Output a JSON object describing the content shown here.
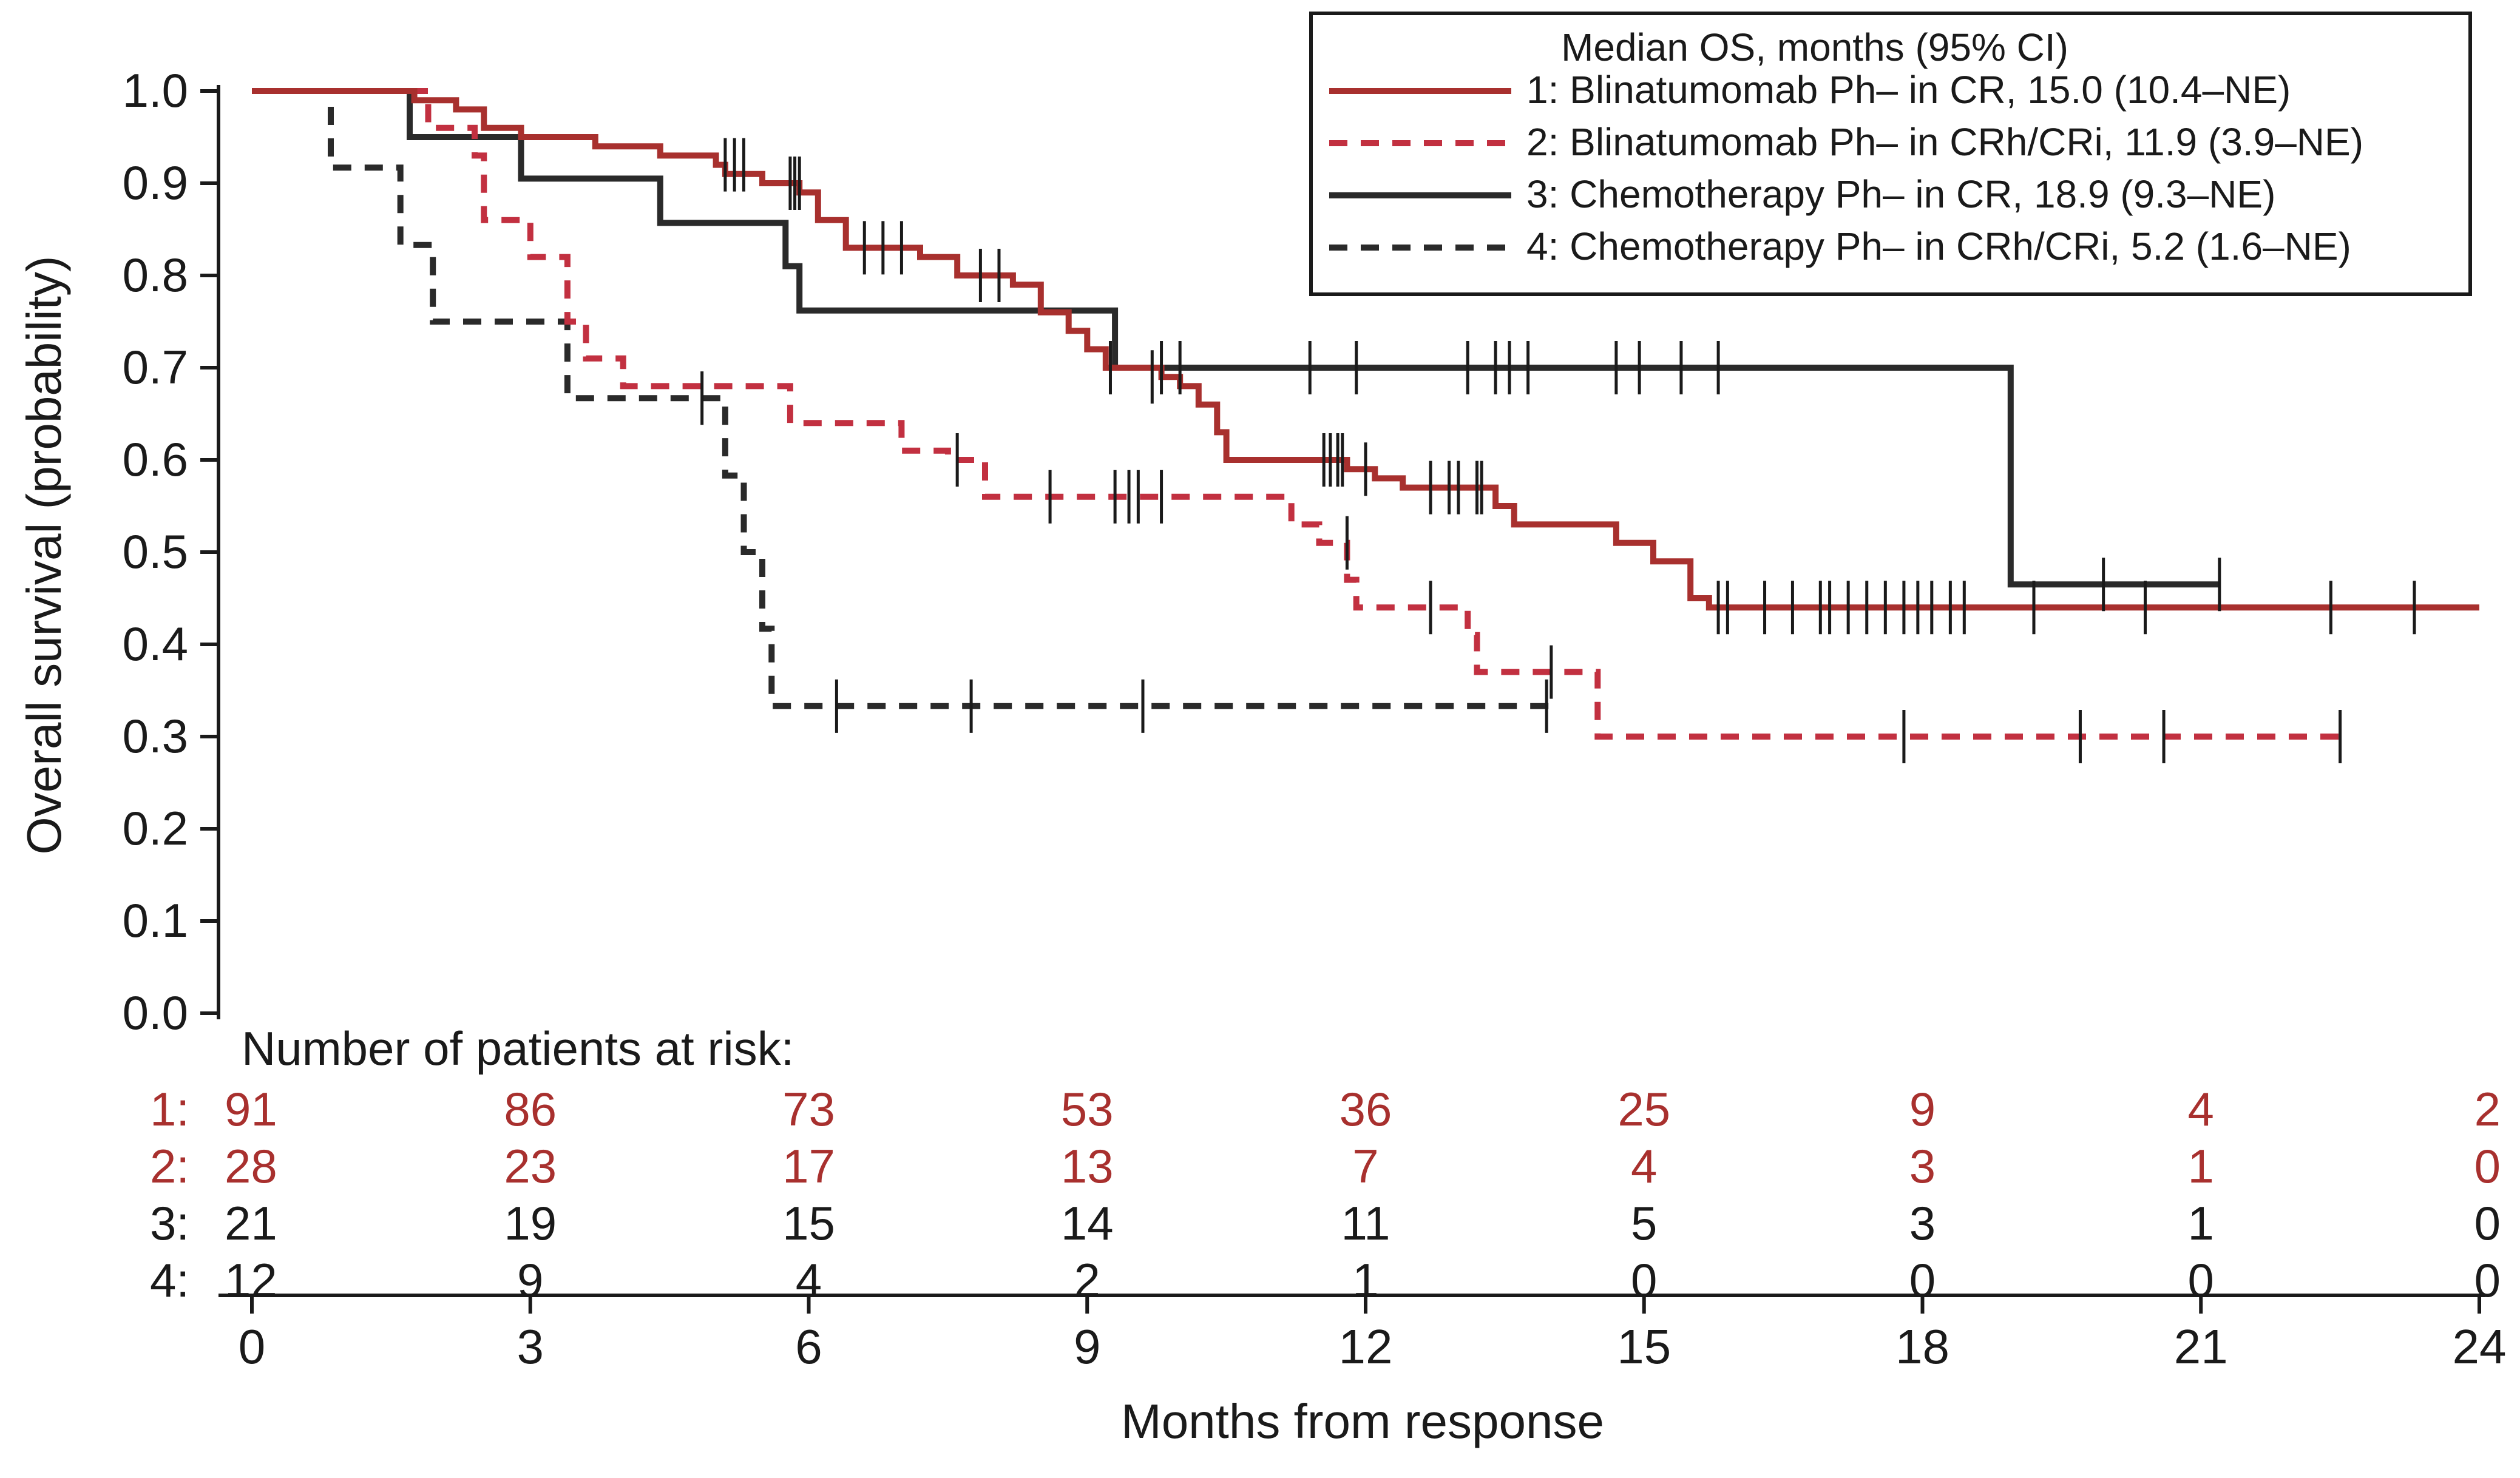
{
  "chart_data": {
    "type": "kaplan-meier",
    "title": "",
    "xlabel": "Months from response",
    "ylabel": "Overall survival (probability)",
    "xlim": [
      0,
      24
    ],
    "ylim": [
      0,
      1
    ],
    "x_ticks": [
      0,
      3,
      6,
      9,
      12,
      15,
      18,
      21,
      24
    ],
    "x_tick_labels": [
      "0",
      "3",
      "6",
      "9",
      "12",
      "15",
      "18",
      "21",
      "24"
    ],
    "y_ticks": [
      0,
      0.1,
      0.2,
      0.3,
      0.4,
      0.5,
      0.6,
      0.7,
      0.8,
      0.9,
      1.0
    ],
    "y_tick_labels": [
      "0.0",
      "0.1",
      "0.2",
      "0.3",
      "0.4",
      "0.5",
      "0.6",
      "0.7",
      "0.8",
      "0.9",
      "1.0"
    ],
    "legend": {
      "title": "Median OS, months (95% CI)",
      "position": "top-right",
      "entries": [
        "1: Blinatumomab Ph– in CR, 15.0 (10.4–NE)",
        "2: Blinatumomab Ph– in CRh/CRi, 11.9 (3.9–NE)",
        "3: Chemotherapy Ph– in CR, 18.9 (9.3–NE)",
        "4: Chemotherapy Ph– in CRh/CRi, 5.2 (1.6–NE)"
      ]
    },
    "risk_table": {
      "title": "Number of patients at risk:",
      "rows": [
        {
          "label": "1:",
          "values": [
            "91",
            "86",
            "73",
            "53",
            "36",
            "25",
            "9",
            "4",
            "2"
          ]
        },
        {
          "label": "2:",
          "values": [
            "28",
            "23",
            "17",
            "13",
            "7",
            "4",
            "3",
            "1",
            "0"
          ]
        },
        {
          "label": "3:",
          "values": [
            "21",
            "19",
            "15",
            "14",
            "11",
            "5",
            "3",
            "1",
            "0"
          ]
        },
        {
          "label": "4:",
          "values": [
            "12",
            "9",
            "4",
            "2",
            "1",
            "0",
            "0",
            "0",
            "0"
          ]
        }
      ]
    },
    "series": [
      {
        "name": "1: Blinatumomab Ph– in CR",
        "color": "#a8302e",
        "dash": "solid",
        "steps": [
          [
            0,
            1.0
          ],
          [
            1.75,
            0.99
          ],
          [
            2.2,
            0.98
          ],
          [
            2.5,
            0.96
          ],
          [
            2.9,
            0.95
          ],
          [
            3.7,
            0.94
          ],
          [
            4.4,
            0.93
          ],
          [
            5.0,
            0.92
          ],
          [
            5.1,
            0.91
          ],
          [
            5.5,
            0.9
          ],
          [
            5.9,
            0.89
          ],
          [
            6.1,
            0.86
          ],
          [
            6.4,
            0.83
          ],
          [
            7.2,
            0.82
          ],
          [
            7.6,
            0.8
          ],
          [
            8.2,
            0.79
          ],
          [
            8.5,
            0.76
          ],
          [
            8.8,
            0.74
          ],
          [
            9.0,
            0.72
          ],
          [
            9.2,
            0.7
          ],
          [
            9.8,
            0.69
          ],
          [
            10.0,
            0.68
          ],
          [
            10.2,
            0.66
          ],
          [
            10.4,
            0.63
          ],
          [
            10.5,
            0.6
          ],
          [
            11.8,
            0.59
          ],
          [
            12.1,
            0.58
          ],
          [
            12.4,
            0.57
          ],
          [
            13.4,
            0.55
          ],
          [
            13.6,
            0.53
          ],
          [
            14.7,
            0.51
          ],
          [
            15.1,
            0.49
          ],
          [
            15.5,
            0.45
          ],
          [
            15.7,
            0.44
          ],
          [
            24,
            0.44
          ]
        ],
        "end_x": 24,
        "censors": [
          [
            5.1,
            0.92
          ],
          [
            5.2,
            0.92
          ],
          [
            5.3,
            0.92
          ],
          [
            5.8,
            0.9
          ],
          [
            5.85,
            0.9
          ],
          [
            5.9,
            0.9
          ],
          [
            6.6,
            0.83
          ],
          [
            6.8,
            0.83
          ],
          [
            7.0,
            0.83
          ],
          [
            7.85,
            0.8
          ],
          [
            8.05,
            0.8
          ],
          [
            9.7,
            0.69
          ],
          [
            11.55,
            0.6
          ],
          [
            11.62,
            0.6
          ],
          [
            11.7,
            0.6
          ],
          [
            11.75,
            0.6
          ],
          [
            12.0,
            0.59
          ],
          [
            12.7,
            0.57
          ],
          [
            12.9,
            0.57
          ],
          [
            13.0,
            0.57
          ],
          [
            13.2,
            0.57
          ],
          [
            13.25,
            0.57
          ],
          [
            15.8,
            0.44
          ],
          [
            15.9,
            0.44
          ],
          [
            16.3,
            0.44
          ],
          [
            16.6,
            0.44
          ],
          [
            16.9,
            0.44
          ],
          [
            17.0,
            0.44
          ],
          [
            17.2,
            0.44
          ],
          [
            17.4,
            0.44
          ],
          [
            17.6,
            0.44
          ],
          [
            17.8,
            0.44
          ],
          [
            17.95,
            0.44
          ],
          [
            18.1,
            0.44
          ],
          [
            18.3,
            0.44
          ],
          [
            18.45,
            0.44
          ],
          [
            19.2,
            0.44
          ],
          [
            20.4,
            0.44
          ],
          [
            22.4,
            0.44
          ],
          [
            23.3,
            0.44
          ]
        ]
      },
      {
        "name": "2: Blinatumomab Ph– in CRh/CRi",
        "color": "#c23040",
        "dash": "dashed",
        "steps": [
          [
            0,
            1.0
          ],
          [
            1.9,
            0.96
          ],
          [
            2.4,
            0.93
          ],
          [
            2.5,
            0.86
          ],
          [
            3.0,
            0.82
          ],
          [
            3.4,
            0.75
          ],
          [
            3.6,
            0.71
          ],
          [
            4.0,
            0.68
          ],
          [
            5.3,
            0.68
          ],
          [
            5.8,
            0.64
          ],
          [
            7.0,
            0.61
          ],
          [
            7.5,
            0.6
          ],
          [
            7.9,
            0.56
          ],
          [
            11.2,
            0.53
          ],
          [
            11.5,
            0.51
          ],
          [
            11.8,
            0.47
          ],
          [
            11.9,
            0.44
          ],
          [
            13.1,
            0.41
          ],
          [
            13.2,
            0.37
          ],
          [
            14.5,
            0.3
          ],
          [
            22.5,
            0.3
          ]
        ],
        "end_x": 22.5,
        "censors": [
          [
            7.6,
            0.6
          ],
          [
            8.6,
            0.56
          ],
          [
            9.3,
            0.56
          ],
          [
            9.45,
            0.56
          ],
          [
            9.55,
            0.56
          ],
          [
            9.8,
            0.56
          ],
          [
            11.8,
            0.51
          ],
          [
            12.7,
            0.44
          ],
          [
            14.0,
            0.37
          ],
          [
            17.8,
            0.3
          ],
          [
            19.7,
            0.3
          ],
          [
            20.6,
            0.3
          ],
          [
            22.5,
            0.3
          ]
        ]
      },
      {
        "name": "3: Chemotherapy Ph– in CR",
        "color": "#2a2a2a",
        "dash": "solid",
        "steps": [
          [
            0,
            1.0
          ],
          [
            1.7,
            0.95
          ],
          [
            2.9,
            0.905
          ],
          [
            4.4,
            0.857
          ],
          [
            5.75,
            0.81
          ],
          [
            5.9,
            0.762
          ],
          [
            9.3,
            0.7
          ],
          [
            18.95,
            0.465
          ],
          [
            21.2,
            0.465
          ]
        ],
        "end_x": 21.2,
        "censors": [
          [
            9.25,
            0.7
          ],
          [
            9.8,
            0.7
          ],
          [
            10.0,
            0.7
          ],
          [
            11.4,
            0.7
          ],
          [
            11.9,
            0.7
          ],
          [
            13.1,
            0.7
          ],
          [
            13.4,
            0.7
          ],
          [
            13.55,
            0.7
          ],
          [
            13.75,
            0.7
          ],
          [
            14.7,
            0.7
          ],
          [
            14.95,
            0.7
          ],
          [
            15.4,
            0.7
          ],
          [
            15.8,
            0.7
          ],
          [
            19.95,
            0.465
          ],
          [
            21.2,
            0.465
          ]
        ]
      },
      {
        "name": "4: Chemotherapy Ph– in CRh/CRi",
        "color": "#2a2a2a",
        "dash": "dashed",
        "steps": [
          [
            0,
            1.0
          ],
          [
            0.85,
            0.917
          ],
          [
            1.6,
            0.833
          ],
          [
            1.95,
            0.75
          ],
          [
            3.4,
            0.667
          ],
          [
            5.1,
            0.583
          ],
          [
            5.3,
            0.5
          ],
          [
            5.5,
            0.417
          ],
          [
            5.6,
            0.333
          ],
          [
            14.1,
            0.333
          ]
        ],
        "end_x": 14.1,
        "censors": [
          [
            4.85,
            0.667
          ],
          [
            6.3,
            0.333
          ],
          [
            7.75,
            0.333
          ],
          [
            9.6,
            0.333
          ],
          [
            13.95,
            0.333
          ]
        ]
      }
    ]
  }
}
